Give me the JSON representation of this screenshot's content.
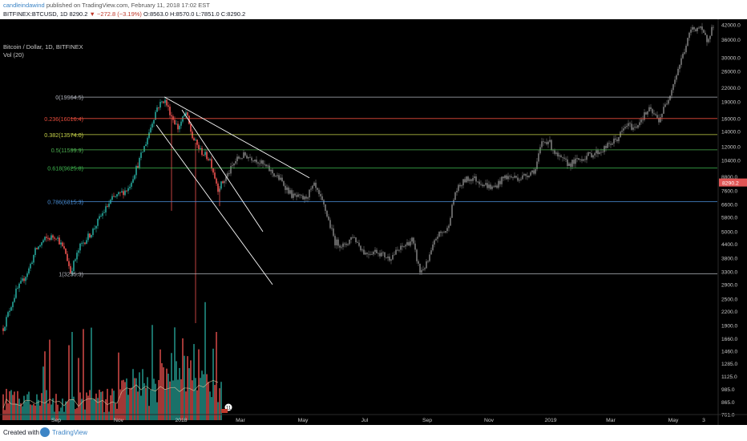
{
  "header": {
    "author": "candleindawind",
    "published": "published on TradingView.com, February 11, 2018 17:02 EST",
    "symbol_line_prefix": "BITFINEX:BTCUSD, 1D 8290.2",
    "change": "▼ −272.8 (−3.19%)",
    "ohlc": "O:8563.0 H:8570.0 L:7851.0 C:8290.2"
  },
  "legend": {
    "title": "Bitcoin / Dollar, 1D, BITFINEX",
    "volume": "Vol (20)"
  },
  "price_axis": {
    "labels": [
      "42000.0",
      "36000.0",
      "30000.0",
      "26000.0",
      "22000.0",
      "19000.0",
      "16000.0",
      "14000.0",
      "12000.0",
      "10400.0",
      "8800.0",
      "7600.0",
      "6600.0",
      "5800.0",
      "5000.0",
      "4400.0",
      "3800.0",
      "3300.0",
      "2900.0",
      "2500.0",
      "2200.0",
      "1900.0",
      "1660.0",
      "1460.0",
      "1285.0",
      "1125.0",
      "985.0",
      "865.0",
      "761.0"
    ],
    "current_price": "8290.2"
  },
  "time_axis": {
    "labels": [
      "Sep",
      "Nov",
      "2018",
      "Mar",
      "May",
      "Jul",
      "Sep",
      "Nov",
      "2019",
      "Mar",
      "May",
      "3"
    ]
  },
  "fib_levels": [
    {
      "label": "0(19964.5)",
      "color": "#b2b5be"
    },
    {
      "label": "0.236(16016.4)",
      "color": "#e74c3c"
    },
    {
      "label": "0.382(13574.0)",
      "color": "#c8d44a"
    },
    {
      "label": "0.5(11599.9)",
      "color": "#4caf50"
    },
    {
      "label": "0.618(9625.8)",
      "color": "#3fb950"
    },
    {
      "label": "0.786(6815.3)",
      "color": "#4a90d9"
    },
    {
      "label": "1(3235.3)",
      "color": "#b2b5be"
    }
  ],
  "badge": {
    "value": "11"
  },
  "footer": {
    "created_with": "Created with",
    "brand": "TradingView"
  },
  "colors": {
    "background": "#000000",
    "up": "#26a69a",
    "down": "#ef5350",
    "projection": "#7a7a7a",
    "price_tag": "#e05555"
  }
}
